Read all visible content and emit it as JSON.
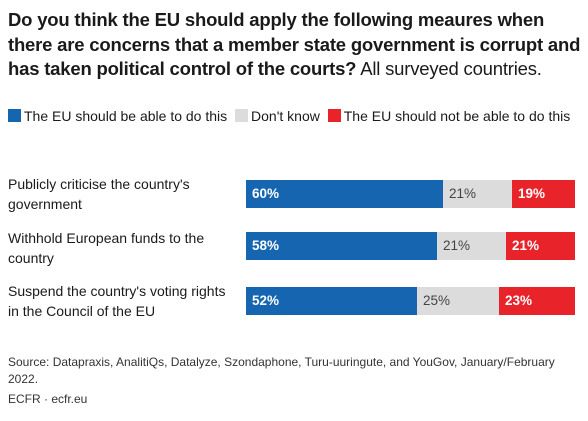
{
  "title_bold": "Do you think the EU should apply the following meaures when there are concerns that a member state government is corrupt and has taken political control of the courts?",
  "title_regular": " All surveyed countries.",
  "legend": [
    {
      "label": "The EU should be able to do this",
      "color": "#1565b0"
    },
    {
      "label": "Don't know",
      "color": "#dcdcdc"
    },
    {
      "label": "The EU should not be able to do this",
      "color": "#e8232a"
    }
  ],
  "chart_data": {
    "type": "bar",
    "orientation": "horizontal",
    "stacked": true,
    "percent_format": "{v}%",
    "categories": [
      "Publicly criticise the country's government",
      "Withhold European funds to the country",
      "Suspend the country's voting rights in the Council of the EU"
    ],
    "series": [
      {
        "name": "The EU should be able to do this",
        "values": [
          60,
          58,
          52
        ],
        "color": "#1565b0"
      },
      {
        "name": "Don't know",
        "values": [
          21,
          21,
          25
        ],
        "color": "#dcdcdc"
      },
      {
        "name": "The EU should not be able to do this",
        "values": [
          19,
          21,
          23
        ],
        "color": "#e8232a"
      }
    ]
  },
  "source": "Source: Datapraxis, AnalitiQs, Datalyze, Szondaphone, Turu-uuringute, and YouGov, January/February 2022.",
  "credit": "ECFR · ecfr.eu"
}
